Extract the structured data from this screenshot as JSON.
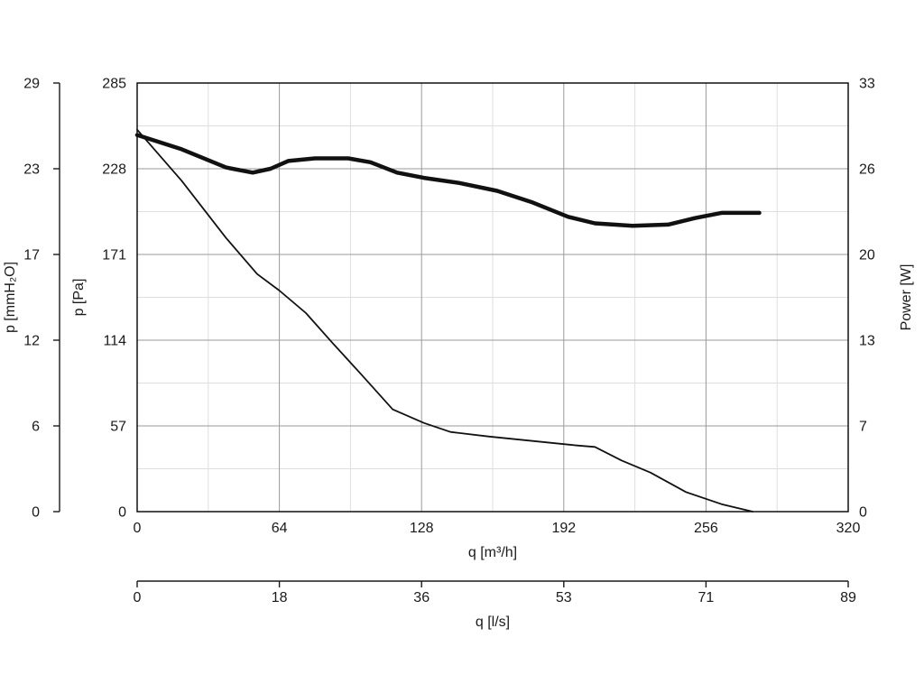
{
  "page": {
    "background": "#ffffff"
  },
  "chart_data": {
    "type": "line",
    "title": "",
    "grid": true,
    "legend": "none",
    "colors": {
      "curve": "#111111",
      "major_grid": "#9a9a9a",
      "minor_grid": "#dedede",
      "frame": "#000000",
      "axis_line": "#1a1a1a",
      "text": "#1a1a1a"
    },
    "axes": {
      "x_main": {
        "label": "q [m³/h]",
        "range": [
          0,
          320
        ],
        "ticks": [
          0,
          64,
          128,
          192,
          256,
          320
        ],
        "minor_step": 32
      },
      "x_secondary": {
        "label": "q [l/s]",
        "range": [
          0,
          89
        ],
        "tick_labels": [
          0,
          18,
          36,
          53,
          71,
          89
        ]
      },
      "y_pa": {
        "label": "p [Pa]",
        "range": [
          0,
          285
        ],
        "ticks": [
          0,
          57,
          114,
          171,
          228,
          285
        ],
        "minor_step": 28.5
      },
      "y_mmh2o": {
        "label": "p [mmH₂O]",
        "range": [
          0,
          29
        ],
        "tick_labels": [
          0,
          6,
          12,
          17,
          23,
          29
        ]
      },
      "y_power": {
        "label": "Power [W]",
        "range": [
          0,
          33
        ],
        "tick_labels": [
          0,
          7,
          13,
          20,
          26,
          33
        ]
      }
    },
    "series": [
      {
        "name": "pressure-curve",
        "y_axis": "y_pa",
        "stroke_width": 1.8,
        "points": [
          [
            0,
            254
          ],
          [
            20,
            220
          ],
          [
            40,
            182
          ],
          [
            54,
            158
          ],
          [
            64,
            147
          ],
          [
            76,
            132
          ],
          [
            88,
            112
          ],
          [
            101,
            91
          ],
          [
            115,
            68
          ],
          [
            129,
            59
          ],
          [
            141,
            53
          ],
          [
            158,
            50
          ],
          [
            178,
            47
          ],
          [
            198,
            44
          ],
          [
            206,
            43
          ],
          [
            218,
            34
          ],
          [
            231,
            26
          ],
          [
            247,
            13
          ],
          [
            263,
            5
          ],
          [
            277,
            0
          ]
        ]
      },
      {
        "name": "power-curve",
        "y_axis": "y_power",
        "stroke_width": 4.5,
        "points": [
          [
            0,
            29.0
          ],
          [
            20,
            27.9
          ],
          [
            40,
            26.5
          ],
          [
            52,
            26.1
          ],
          [
            60,
            26.4
          ],
          [
            68,
            27.0
          ],
          [
            80,
            27.2
          ],
          [
            95,
            27.2
          ],
          [
            105,
            26.9
          ],
          [
            117,
            26.1
          ],
          [
            129,
            25.7
          ],
          [
            145,
            25.3
          ],
          [
            162,
            24.7
          ],
          [
            178,
            23.8
          ],
          [
            194,
            22.7
          ],
          [
            206,
            22.2
          ],
          [
            223,
            22.0
          ],
          [
            239,
            22.1
          ],
          [
            251,
            22.6
          ],
          [
            263,
            23.0
          ],
          [
            280,
            23.0
          ]
        ]
      }
    ]
  }
}
